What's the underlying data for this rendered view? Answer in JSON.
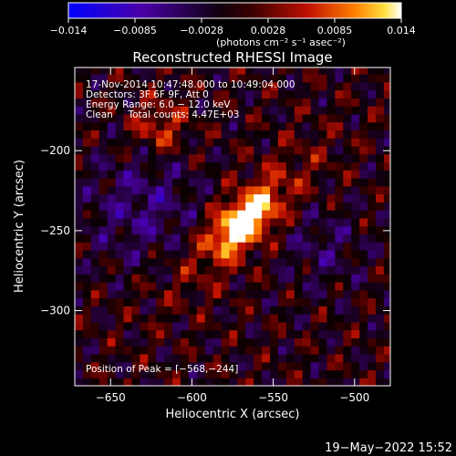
{
  "colorbar": {
    "ticks": [
      "−0.014",
      "−0.0085",
      "−0.0028",
      "0.0028",
      "0.0085",
      "0.014"
    ],
    "unit_label": "(photons cm⁻² s⁻¹ asec⁻²)"
  },
  "chart_data": {
    "type": "heatmap",
    "title": "Reconstructed RHESSI Image",
    "xlabel": "Heliocentric X (arcsec)",
    "ylabel": "Heliocentric Y (arcsec)",
    "xlim": [
      -672,
      -478
    ],
    "ylim": [
      -347,
      -148
    ],
    "x_ticks": [
      -650,
      -600,
      -550,
      -500
    ],
    "y_ticks": [
      -200,
      -250,
      -300
    ],
    "x_tick_labels": [
      "−650",
      "−600",
      "−550",
      "−500"
    ],
    "y_tick_labels": [
      "−200",
      "−250",
      "−300"
    ],
    "value_range": [
      -0.014,
      0.014
    ],
    "colormap": "blue-black-red-yellow-white",
    "peak_source": {
      "x": -568,
      "y": -244,
      "value": 0.014
    }
  },
  "info": {
    "lines": [
      "17-Nov-2014 10:47:48.000 to 10:49:04.000",
      "Detectors: 3F 6F 9F, Att 0",
      "Energy Range: 6.0 − 12.0 keV",
      "Clean     Total counts: 4.47E+03"
    ],
    "peak": "Position of Peak = [−568,−244]"
  },
  "date_stamp": "19−May−2022 15:52"
}
